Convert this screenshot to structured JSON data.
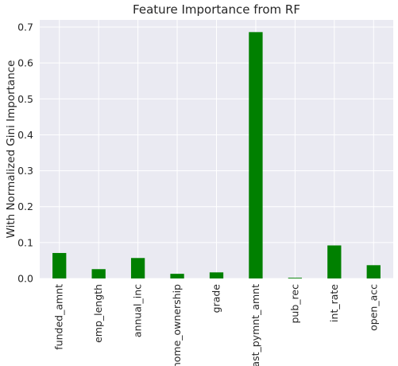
{
  "chart_data": {
    "type": "bar",
    "title": "Feature Importance from RF",
    "xlabel": "",
    "ylabel": "With Normalized Gini Importance",
    "categories": [
      "funded_amnt",
      "emp_length",
      "annual_inc",
      "home_ownership",
      "grade",
      "last_pymnt_amnt",
      "pub_rec",
      "int_rate",
      "open_acc"
    ],
    "values": [
      0.071,
      0.026,
      0.057,
      0.013,
      0.017,
      0.686,
      0.002,
      0.092,
      0.037
    ],
    "ylim": [
      0,
      0.72
    ],
    "yticks": [
      0.0,
      0.1,
      0.2,
      0.3,
      0.4,
      0.5,
      0.6,
      0.7
    ],
    "ytick_labels": [
      "0.0",
      "0.1",
      "0.2",
      "0.3",
      "0.4",
      "0.5",
      "0.6",
      "0.7"
    ],
    "grid": true,
    "bar_color": "#008000",
    "background_color": "#EAEAF2"
  }
}
